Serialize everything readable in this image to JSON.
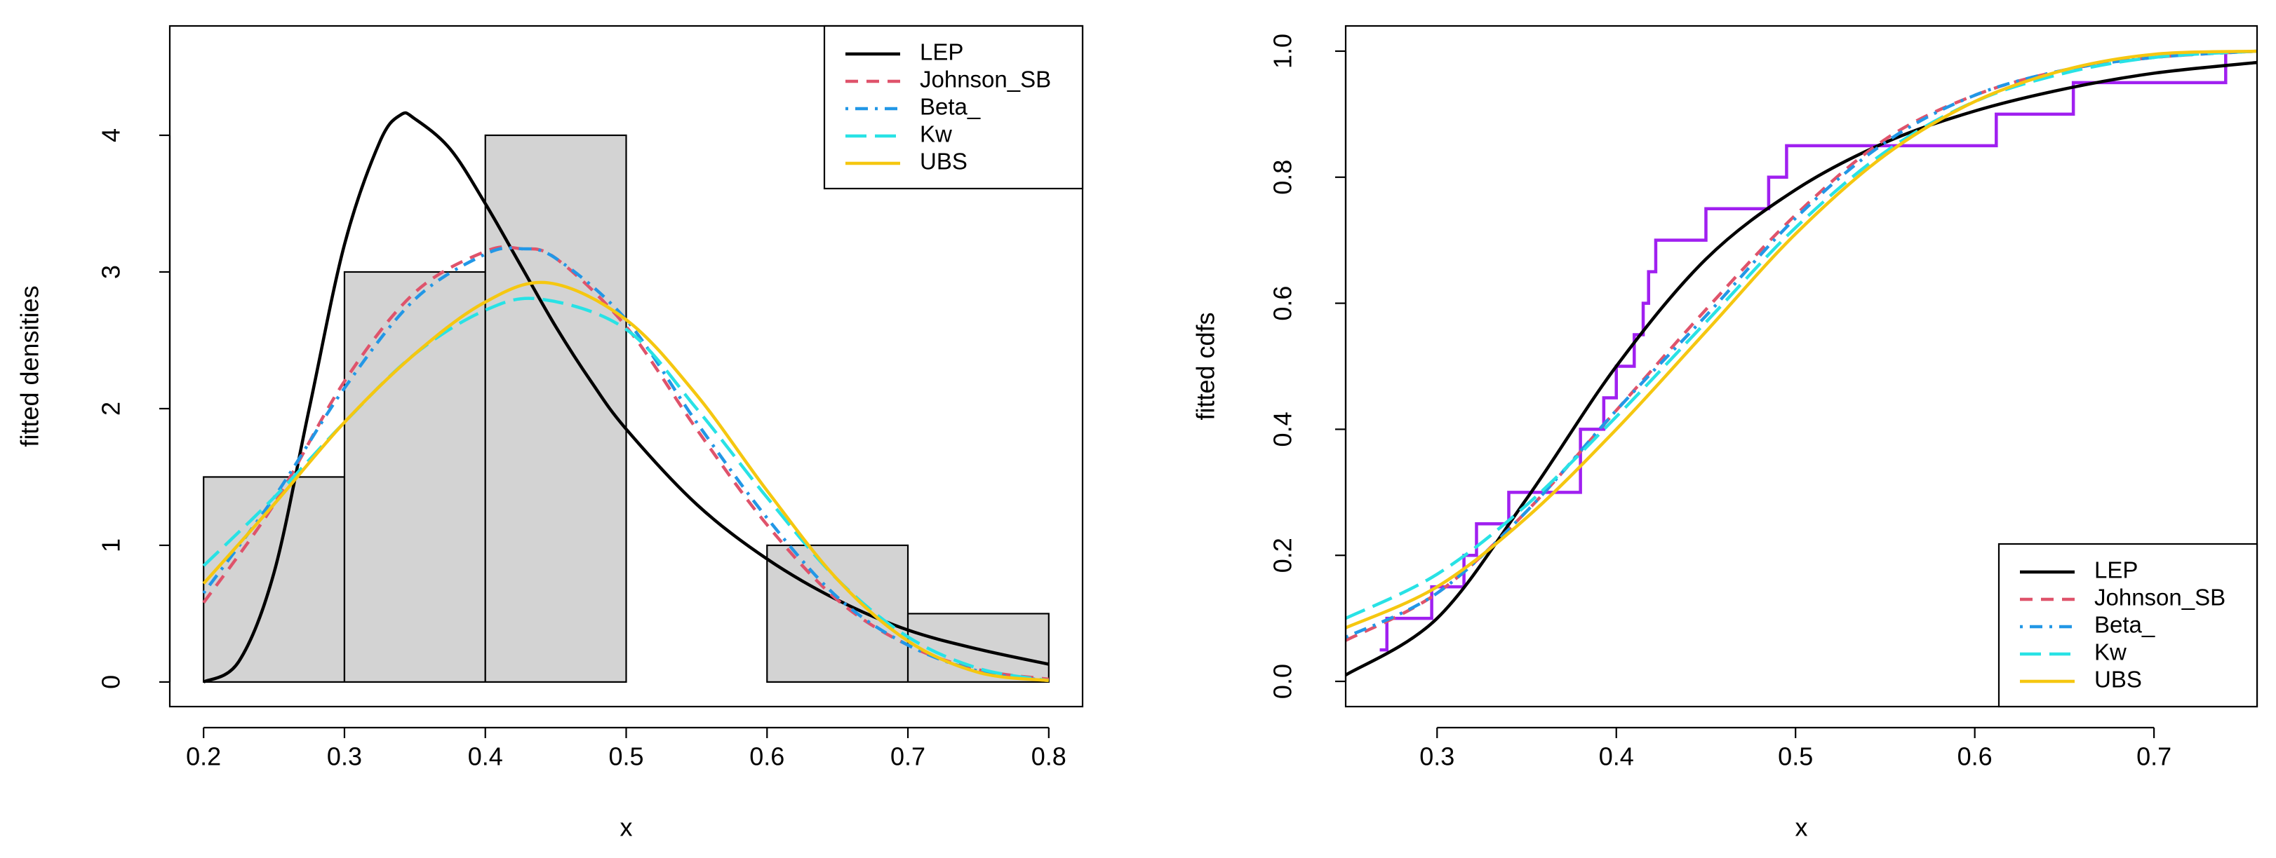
{
  "chart_data": [
    {
      "type": "histogram",
      "xlabel": "x",
      "ylabel": "fitted densities",
      "bins": [
        0.2,
        0.3,
        0.4,
        0.5,
        0.6,
        0.7,
        0.8
      ],
      "counts": [
        1.5,
        3,
        4,
        0,
        1,
        0.5
      ],
      "bar_color": "#d3d3d3",
      "xlim": [
        0.176,
        0.824
      ],
      "ylim": [
        -0.18,
        4.8
      ],
      "xticks": [
        0.2,
        0.3,
        0.4,
        0.5,
        0.6,
        0.7,
        0.8
      ],
      "yticks": [
        0,
        1,
        2,
        3,
        4
      ],
      "legend": "topright",
      "series": [
        {
          "name": "LEP",
          "color": "#000000",
          "dash": "solid",
          "x": [
            0.2,
            0.225,
            0.25,
            0.275,
            0.3,
            0.325,
            0.34,
            0.35,
            0.375,
            0.4,
            0.425,
            0.45,
            0.475,
            0.5,
            0.55,
            0.6,
            0.65,
            0.7,
            0.75,
            0.8
          ],
          "values": [
            0.0,
            0.15,
            0.8,
            2.0,
            3.2,
            3.95,
            4.15,
            4.12,
            3.9,
            3.5,
            3.05,
            2.6,
            2.2,
            1.85,
            1.3,
            0.9,
            0.6,
            0.38,
            0.24,
            0.13
          ]
        },
        {
          "name": "Johnson_SB",
          "color": "#df536b",
          "dash": "dashed",
          "x": [
            0.2,
            0.25,
            0.3,
            0.35,
            0.4,
            0.425,
            0.45,
            0.5,
            0.55,
            0.6,
            0.65,
            0.7,
            0.75,
            0.8
          ],
          "values": [
            0.58,
            1.3,
            2.2,
            2.85,
            3.15,
            3.17,
            3.1,
            2.6,
            1.85,
            1.15,
            0.6,
            0.27,
            0.09,
            0.02
          ]
        },
        {
          "name": "Beta_",
          "color": "#2297e6",
          "dash": "dotdash",
          "x": [
            0.2,
            0.25,
            0.3,
            0.35,
            0.4,
            0.425,
            0.45,
            0.5,
            0.55,
            0.6,
            0.65,
            0.7,
            0.75,
            0.8
          ],
          "values": [
            0.65,
            1.35,
            2.15,
            2.8,
            3.13,
            3.17,
            3.1,
            2.65,
            1.9,
            1.2,
            0.62,
            0.27,
            0.08,
            0.01
          ]
        },
        {
          "name": "Kw",
          "color": "#28e2e5",
          "dash": "longdash",
          "x": [
            0.2,
            0.25,
            0.3,
            0.35,
            0.4,
            0.44,
            0.5,
            0.55,
            0.6,
            0.65,
            0.7,
            0.75,
            0.8
          ],
          "values": [
            0.85,
            1.35,
            1.9,
            2.4,
            2.72,
            2.8,
            2.58,
            2.0,
            1.35,
            0.75,
            0.33,
            0.1,
            0.01
          ]
        },
        {
          "name": "UBS",
          "color": "#f5c710",
          "dash": "solid",
          "x": [
            0.2,
            0.25,
            0.3,
            0.35,
            0.4,
            0.445,
            0.5,
            0.55,
            0.6,
            0.65,
            0.7,
            0.75,
            0.8
          ],
          "values": [
            0.72,
            1.3,
            1.9,
            2.4,
            2.78,
            2.92,
            2.65,
            2.1,
            1.4,
            0.75,
            0.3,
            0.07,
            0.01
          ]
        }
      ]
    },
    {
      "type": "line",
      "xlabel": "x",
      "ylabel": "fitted cdfs",
      "xlim": [
        0.249,
        0.7575
      ],
      "ylim": [
        -0.04,
        1.04
      ],
      "xticks": [
        0.3,
        0.4,
        0.5,
        0.6,
        0.7
      ],
      "yticks": [
        {
          "value": 0,
          "label": "0.0"
        },
        0.2,
        0.4,
        0.6,
        0.8,
        {
          "value": 1,
          "label": "1.0"
        }
      ],
      "legend": "bottomright",
      "ecdf": {
        "color": "#a020f0",
        "x": [
          0.268,
          0.272,
          0.297,
          0.315,
          0.322,
          0.34,
          0.38,
          0.38,
          0.393,
          0.4,
          0.41,
          0.415,
          0.418,
          0.422,
          0.45,
          0.485,
          0.495,
          0.612,
          0.655,
          0.74
        ],
        "values": [
          0.05,
          0.1,
          0.15,
          0.2,
          0.25,
          0.3,
          0.35,
          0.4,
          0.45,
          0.5,
          0.55,
          0.6,
          0.65,
          0.7,
          0.75,
          0.8,
          0.85,
          0.9,
          0.95,
          1.0
        ]
      },
      "series": [
        {
          "name": "LEP",
          "color": "#000000",
          "dash": "solid",
          "x": [
            0.249,
            0.3,
            0.35,
            0.4,
            0.45,
            0.5,
            0.55,
            0.6,
            0.65,
            0.7,
            0.7575
          ],
          "values": [
            0.01,
            0.1,
            0.29,
            0.5,
            0.67,
            0.78,
            0.855,
            0.905,
            0.94,
            0.965,
            0.982
          ]
        },
        {
          "name": "Johnson_SB",
          "color": "#df536b",
          "dash": "dashed",
          "x": [
            0.249,
            0.3,
            0.35,
            0.4,
            0.45,
            0.5,
            0.55,
            0.6,
            0.65,
            0.7,
            0.7575
          ],
          "values": [
            0.065,
            0.14,
            0.27,
            0.43,
            0.59,
            0.74,
            0.86,
            0.93,
            0.97,
            0.99,
            1.0
          ]
        },
        {
          "name": "Beta_",
          "color": "#2297e6",
          "dash": "dotdash",
          "x": [
            0.249,
            0.3,
            0.35,
            0.4,
            0.45,
            0.5,
            0.55,
            0.6,
            0.65,
            0.7,
            0.7575
          ],
          "values": [
            0.07,
            0.14,
            0.27,
            0.43,
            0.58,
            0.735,
            0.855,
            0.93,
            0.97,
            0.99,
            1.0
          ]
        },
        {
          "name": "Kw",
          "color": "#28e2e5",
          "dash": "longdash",
          "x": [
            0.249,
            0.3,
            0.35,
            0.4,
            0.45,
            0.5,
            0.55,
            0.6,
            0.65,
            0.7,
            0.7575
          ],
          "values": [
            0.1,
            0.17,
            0.28,
            0.42,
            0.57,
            0.72,
            0.84,
            0.92,
            0.965,
            0.99,
            1.0
          ]
        },
        {
          "name": "UBS",
          "color": "#f5c710",
          "dash": "solid",
          "x": [
            0.249,
            0.3,
            0.35,
            0.4,
            0.45,
            0.5,
            0.55,
            0.6,
            0.65,
            0.7,
            0.7575
          ],
          "values": [
            0.085,
            0.15,
            0.26,
            0.4,
            0.555,
            0.71,
            0.835,
            0.92,
            0.97,
            0.995,
            1.0
          ]
        }
      ]
    }
  ]
}
